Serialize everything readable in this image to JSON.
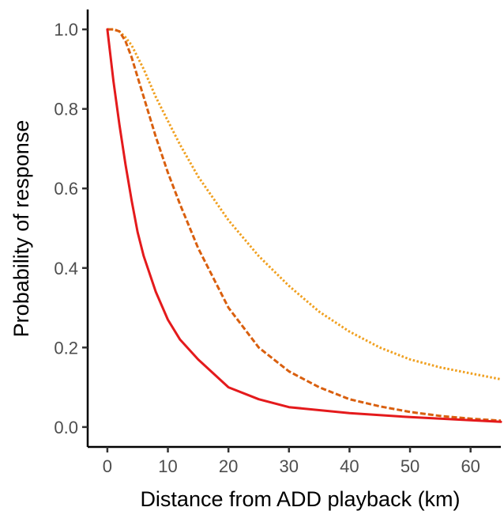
{
  "chart_data": {
    "type": "line",
    "title": "",
    "xlabel": "Distance from ADD playback (km)",
    "ylabel": "Probability of response",
    "xlim": [
      -3.25,
      65
    ],
    "ylim": [
      -0.05,
      1.05
    ],
    "x_ticks": [
      0,
      10,
      20,
      30,
      40,
      50,
      60
    ],
    "x_tick_labels": [
      "0",
      "10",
      "20",
      "30",
      "40",
      "50",
      "60"
    ],
    "y_ticks": [
      0.0,
      0.2,
      0.4,
      0.6,
      0.8,
      1.0
    ],
    "y_tick_labels": [
      "0.0",
      "0.2",
      "0.4",
      "0.6",
      "0.8",
      "1.0"
    ],
    "grid": false,
    "legend": "none",
    "series": [
      {
        "color": "#e41a1c",
        "line_style": "solid",
        "x": [
          0,
          1,
          2,
          3,
          4,
          5,
          6,
          8,
          10,
          12,
          15,
          20,
          25,
          30,
          40,
          50,
          60,
          65
        ],
        "y": [
          1.0,
          0.87,
          0.76,
          0.66,
          0.57,
          0.49,
          0.43,
          0.34,
          0.27,
          0.22,
          0.17,
          0.1,
          0.07,
          0.05,
          0.035,
          0.025,
          0.017,
          0.013
        ]
      },
      {
        "color": "#d95f0e",
        "line_style": "dashed",
        "x": [
          0,
          1,
          2,
          3,
          4,
          5,
          6,
          8,
          10,
          12,
          15,
          20,
          25,
          30,
          35,
          40,
          45,
          50,
          55,
          60,
          65
        ],
        "y": [
          1.0,
          1.0,
          0.995,
          0.97,
          0.93,
          0.88,
          0.83,
          0.73,
          0.64,
          0.56,
          0.45,
          0.3,
          0.2,
          0.14,
          0.1,
          0.07,
          0.052,
          0.038,
          0.028,
          0.021,
          0.016
        ]
      },
      {
        "color": "#f0a020",
        "line_style": "dotted",
        "x": [
          0,
          1,
          2,
          3,
          4,
          5,
          6,
          8,
          10,
          12,
          15,
          20,
          25,
          30,
          35,
          40,
          45,
          50,
          55,
          60,
          65
        ],
        "y": [
          1.0,
          1.0,
          0.995,
          0.98,
          0.96,
          0.93,
          0.9,
          0.83,
          0.77,
          0.71,
          0.63,
          0.52,
          0.43,
          0.355,
          0.29,
          0.24,
          0.2,
          0.17,
          0.15,
          0.135,
          0.12
        ]
      }
    ]
  }
}
